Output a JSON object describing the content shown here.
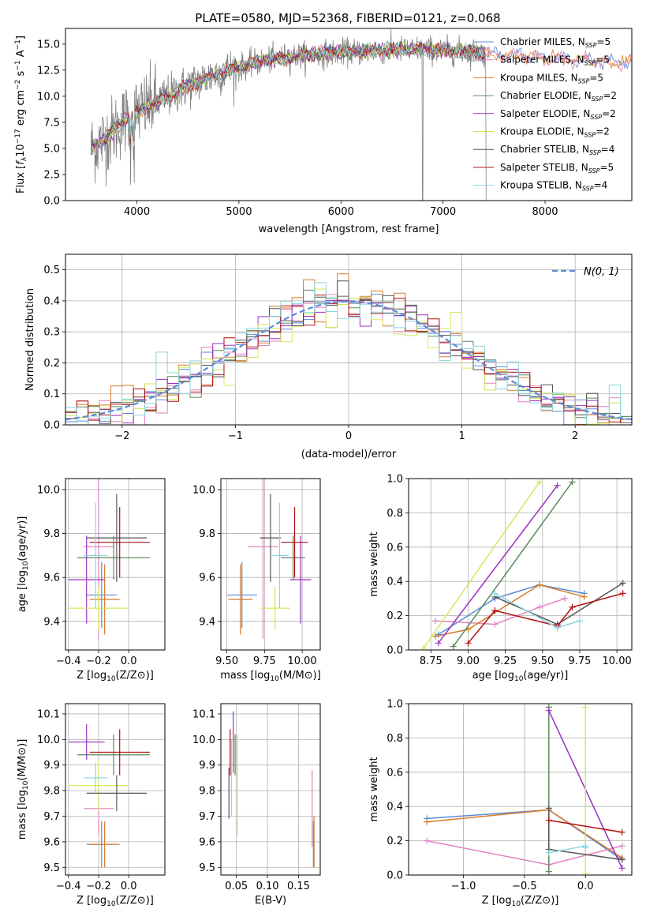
{
  "figure_title": "PLATE=0580, MJD=52368, FIBERID=0121, z=0.068",
  "colors": {
    "Chabrier MILES": "#5b8ad6",
    "Salpeter MILES": "#e282c1",
    "Kroupa MILES": "#d97b28",
    "Chabrier ELODIE": "#5b8a5b",
    "Salpeter ELODIE": "#9b30c0",
    "Kroupa ELODIE": "#d4e85a",
    "Chabrier STELIB": "#555555",
    "Salpeter STELIB": "#b01010",
    "Kroupa STELIB": "#8ad8e0",
    "data": "#808080",
    "normal": "#5b8ad6"
  },
  "chart_data": [
    {
      "id": "spectrum",
      "type": "line",
      "title": "PLATE=0580, MJD=52368, FIBERID=0121, z=0.068",
      "xlabel": "wavelength [Angstrom, rest frame]",
      "ylabel": "Flux [f_λ10^-17 erg cm^-2 s^-1 A^-1]",
      "xlim": [
        3300,
        8850
      ],
      "ylim": [
        0,
        16.5
      ],
      "xticks": [
        4000,
        5000,
        6000,
        7000,
        8000
      ],
      "yticks": [
        0.0,
        2.5,
        5.0,
        7.5,
        10.0,
        12.5,
        15.0
      ],
      "ytick_labels": [
        "0.0",
        "2.5",
        "5.0",
        "7.5",
        "10.0",
        "12.5",
        "15.0"
      ],
      "grid": false,
      "legend_position": "right",
      "legend": [
        {
          "model": "Chabrier MILES",
          "label": "Chabrier MILES, N",
          "sub": "SSP",
          "tail": "=5"
        },
        {
          "model": "Salpeter MILES",
          "label": "Salpeter MILES, N",
          "sub": "SSP",
          "tail": "=5"
        },
        {
          "model": "Kroupa MILES",
          "label": "Kroupa MILES, N",
          "sub": "SSP",
          "tail": "=5"
        },
        {
          "model": "Chabrier ELODIE",
          "label": "Chabrier ELODIE, N",
          "sub": "SSP",
          "tail": "=2"
        },
        {
          "model": "Salpeter ELODIE",
          "label": "Salpeter ELODIE, N",
          "sub": "SSP",
          "tail": "=2"
        },
        {
          "model": "Kroupa ELODIE",
          "label": "Kroupa ELODIE, N",
          "sub": "SSP",
          "tail": "=2"
        },
        {
          "model": "Chabrier STELIB",
          "label": "Chabrier STELIB, N",
          "sub": "SSP",
          "tail": "=4"
        },
        {
          "model": "Salpeter STELIB",
          "label": "Salpeter STELIB, N",
          "sub": "SSP",
          "tail": "=5"
        },
        {
          "model": "Kroupa STELIB",
          "label": "Kroupa STELIB, N",
          "sub": "SSP",
          "tail": "=4"
        }
      ],
      "continuum": {
        "wavelength": [
          3550,
          3700,
          3850,
          4000,
          4200,
          4500,
          4800,
          5000,
          5300,
          5600,
          6000,
          6400,
          6800,
          7200,
          7600,
          8000,
          8400,
          8800
        ],
        "flux": [
          5.0,
          6.0,
          7.5,
          8.5,
          9.5,
          11.0,
          12.2,
          12.8,
          13.5,
          13.9,
          14.2,
          14.4,
          14.5,
          14.3,
          14.0,
          13.7,
          13.4,
          13.2
        ]
      }
    },
    {
      "id": "residuals",
      "type": "line",
      "xlabel": "(data-model)/error",
      "ylabel": "Normed distribution",
      "xlim": [
        -2.5,
        2.5
      ],
      "ylim": [
        0,
        0.55
      ],
      "xticks": [
        -2,
        -1,
        0,
        1,
        2
      ],
      "xtick_labels": [
        "−2",
        "−1",
        "0",
        "1",
        "2"
      ],
      "yticks": [
        0.0,
        0.1,
        0.2,
        0.3,
        0.4,
        0.5
      ],
      "ytick_labels": [
        "0.0",
        "0.1",
        "0.2",
        "0.3",
        "0.4",
        "0.5"
      ],
      "grid": true,
      "legend_position": "top-right",
      "normal_label": "N(0, 1)",
      "bin_width": 0.1
    },
    {
      "id": "age_vs_Z",
      "type": "scatter",
      "xlabel": "Z [log10(Z/Z⊙)]",
      "ylabel": "age [log10(age/yr)]",
      "xlim": [
        -0.42,
        0.24
      ],
      "ylim": [
        9.27,
        10.05
      ],
      "xticks": [
        -0.4,
        -0.2,
        0.0
      ],
      "xtick_labels": [
        "−0.4",
        "−0.2",
        "0.0"
      ],
      "yticks": [
        9.4,
        9.6,
        9.8,
        10.0
      ],
      "ytick_labels": [
        "9.4",
        "9.6",
        "9.8",
        "10.0"
      ],
      "grid": true,
      "points": [
        {
          "model": "Chabrier MILES",
          "x": -0.18,
          "xerr": 0.1,
          "y": 9.52,
          "yerr": 0.15
        },
        {
          "model": "Salpeter MILES",
          "x": -0.2,
          "xerr": 0.1,
          "y": 9.74,
          "yerr": 0.42
        },
        {
          "model": "Kroupa MILES",
          "x": -0.16,
          "xerr": 0.1,
          "y": 9.5,
          "yerr": 0.16
        },
        {
          "model": "Chabrier ELODIE",
          "x": -0.1,
          "xerr": 0.24,
          "y": 9.69,
          "yerr": 0.1
        },
        {
          "model": "Salpeter ELODIE",
          "x": -0.28,
          "xerr": 0.12,
          "y": 9.59,
          "yerr": 0.2
        },
        {
          "model": "Kroupa ELODIE",
          "x": -0.2,
          "xerr": 0.2,
          "y": 9.46,
          "yerr": 0.1
        },
        {
          "model": "Chabrier STELIB",
          "x": -0.08,
          "xerr": 0.2,
          "y": 9.78,
          "yerr": 0.2
        },
        {
          "model": "Salpeter STELIB",
          "x": -0.06,
          "xerr": 0.2,
          "y": 9.76,
          "yerr": 0.16
        },
        {
          "model": "Kroupa STELIB",
          "x": -0.22,
          "xerr": 0.08,
          "y": 9.7,
          "yerr": 0.24
        }
      ]
    },
    {
      "id": "age_vs_mass",
      "type": "scatter",
      "xlabel": "mass [log10(M/M⊙)]",
      "ylabel": "",
      "xlim": [
        9.46,
        10.12
      ],
      "ylim": [
        9.27,
        10.05
      ],
      "xticks": [
        9.5,
        9.75,
        10.0
      ],
      "xtick_labels": [
        "9.50",
        "9.75",
        "10.00"
      ],
      "yticks": [
        9.4,
        9.6,
        9.8,
        10.0
      ],
      "ytick_labels": [
        "9.4",
        "9.6",
        "9.8",
        "10.0"
      ],
      "grid": true,
      "points": [
        {
          "model": "Chabrier MILES",
          "x": 9.6,
          "xerr": 0.1,
          "y": 9.52,
          "yerr": 0.15
        },
        {
          "model": "Salpeter MILES",
          "x": 9.74,
          "xerr": 0.1,
          "y": 9.74,
          "yerr": 0.42
        },
        {
          "model": "Kroupa MILES",
          "x": 9.59,
          "xerr": 0.08,
          "y": 9.5,
          "yerr": 0.16
        },
        {
          "model": "Chabrier ELODIE",
          "x": 9.94,
          "xerr": 0.08,
          "y": 9.69,
          "yerr": 0.1
        },
        {
          "model": "Salpeter ELODIE",
          "x": 9.99,
          "xerr": 0.07,
          "y": 9.59,
          "yerr": 0.2
        },
        {
          "model": "Kroupa ELODIE",
          "x": 9.82,
          "xerr": 0.1,
          "y": 9.46,
          "yerr": 0.1
        },
        {
          "model": "Chabrier STELIB",
          "x": 9.79,
          "xerr": 0.07,
          "y": 9.78,
          "yerr": 0.2
        },
        {
          "model": "Salpeter STELIB",
          "x": 9.95,
          "xerr": 0.09,
          "y": 9.76,
          "yerr": 0.16
        },
        {
          "model": "Kroupa STELIB",
          "x": 9.85,
          "xerr": 0.06,
          "y": 9.7,
          "yerr": 0.24
        }
      ]
    },
    {
      "id": "weight_vs_age",
      "type": "line",
      "xlabel": "age [log10(age/yr)]",
      "ylabel": "mass weight",
      "xlim": [
        8.6,
        10.1
      ],
      "ylim": [
        0,
        1
      ],
      "xticks": [
        8.75,
        9.0,
        9.25,
        9.5,
        9.75,
        10.0
      ],
      "xtick_labels": [
        "8.75",
        "9.00",
        "9.25",
        "9.50",
        "9.75",
        "10.00"
      ],
      "yticks": [
        0.0,
        0.2,
        0.4,
        0.6,
        0.8,
        1.0
      ],
      "ytick_labels": [
        "0.0",
        "0.2",
        "0.4",
        "0.6",
        "0.8",
        "1.0"
      ],
      "grid": true,
      "series": [
        {
          "model": "Chabrier MILES",
          "x": [
            8.8,
            9.18,
            9.48,
            9.78
          ],
          "y": [
            0.09,
            0.3,
            0.38,
            0.33
          ]
        },
        {
          "model": "Salpeter MILES",
          "x": [
            8.78,
            9.18,
            9.48,
            9.65
          ],
          "y": [
            0.17,
            0.15,
            0.25,
            0.3
          ]
        },
        {
          "model": "Kroupa MILES",
          "x": [
            8.78,
            9.0,
            9.48,
            9.78
          ],
          "y": [
            0.08,
            0.12,
            0.38,
            0.31
          ]
        },
        {
          "model": "Chabrier ELODIE",
          "x": [
            8.9,
            9.7
          ],
          "y": [
            0.02,
            0.98
          ]
        },
        {
          "model": "Salpeter ELODIE",
          "x": [
            8.8,
            9.6
          ],
          "y": [
            0.04,
            0.96
          ]
        },
        {
          "model": "Kroupa ELODIE",
          "x": [
            8.7,
            9.48
          ],
          "y": [
            0.01,
            0.98
          ]
        },
        {
          "model": "Chabrier STELIB",
          "x": [
            9.18,
            9.6,
            10.04
          ],
          "y": [
            0.31,
            0.15,
            0.39
          ]
        },
        {
          "model": "Salpeter STELIB",
          "x": [
            9.0,
            9.18,
            9.6,
            9.7,
            10.04
          ],
          "y": [
            0.04,
            0.23,
            0.14,
            0.25,
            0.33
          ]
        },
        {
          "model": "Kroupa STELIB",
          "x": [
            9.18,
            9.6,
            9.75
          ],
          "y": [
            0.33,
            0.13,
            0.17
          ]
        }
      ]
    },
    {
      "id": "mass_vs_Z",
      "type": "scatter",
      "xlabel": "Z [log10(Z/Z⊙)]",
      "ylabel": "mass [log10(M/M⊙)]",
      "xlim": [
        -0.42,
        0.24
      ],
      "ylim": [
        9.47,
        10.14
      ],
      "xticks": [
        -0.4,
        -0.2,
        0.0
      ],
      "xtick_labels": [
        "−0.4",
        "−0.2",
        "0.0"
      ],
      "yticks": [
        9.5,
        9.6,
        9.7,
        9.8,
        9.9,
        10.0,
        10.1
      ],
      "ytick_labels": [
        "9.5",
        "9.6",
        "9.7",
        "9.8",
        "9.9",
        "10.0",
        "10.1"
      ],
      "grid": true,
      "points": [
        {
          "model": "Chabrier MILES",
          "x": -0.18,
          "xerr": 0.1,
          "y": 9.59,
          "yerr": 0.09
        },
        {
          "model": "Salpeter MILES",
          "x": -0.2,
          "xerr": 0.1,
          "y": 9.73,
          "yerr": 0.1
        },
        {
          "model": "Kroupa MILES",
          "x": -0.16,
          "xerr": 0.1,
          "y": 9.59,
          "yerr": 0.09
        },
        {
          "model": "Chabrier ELODIE",
          "x": -0.1,
          "xerr": 0.24,
          "y": 9.94,
          "yerr": 0.08
        },
        {
          "model": "Salpeter ELODIE",
          "x": -0.28,
          "xerr": 0.12,
          "y": 9.99,
          "yerr": 0.07
        },
        {
          "model": "Kroupa ELODIE",
          "x": -0.2,
          "xerr": 0.2,
          "y": 9.82,
          "yerr": 0.1
        },
        {
          "model": "Chabrier STELIB",
          "x": -0.08,
          "xerr": 0.2,
          "y": 9.79,
          "yerr": 0.07
        },
        {
          "model": "Salpeter STELIB",
          "x": -0.06,
          "xerr": 0.2,
          "y": 9.95,
          "yerr": 0.09
        },
        {
          "model": "Kroupa STELIB",
          "x": -0.22,
          "xerr": 0.08,
          "y": 9.85,
          "yerr": 0.06
        }
      ]
    },
    {
      "id": "mass_vs_EBV",
      "type": "scatter",
      "xlabel": "E(B-V)",
      "ylabel": "",
      "xlim": [
        0.025,
        0.185
      ],
      "ylim": [
        9.47,
        10.14
      ],
      "xticks": [
        0.05,
        0.1,
        0.15
      ],
      "xtick_labels": [
        "0.05",
        "0.10",
        "0.15"
      ],
      "yticks": [
        9.5,
        9.6,
        9.7,
        9.8,
        9.9,
        10.0,
        10.1
      ],
      "ytick_labels": [
        "9.5",
        "9.6",
        "9.7",
        "9.8",
        "9.9",
        "10.0",
        "10.1"
      ],
      "grid": true,
      "points": [
        {
          "model": "Chabrier MILES",
          "x": 0.174,
          "xerr": 0,
          "y": 9.59,
          "yerr": 0.09
        },
        {
          "model": "Salpeter MILES",
          "x": 0.172,
          "xerr": 0,
          "y": 9.73,
          "yerr": 0.15
        },
        {
          "model": "Kroupa MILES",
          "x": 0.175,
          "xerr": 0,
          "y": 9.6,
          "yerr": 0.1
        },
        {
          "model": "Chabrier ELODIE",
          "x": 0.048,
          "xerr": 0,
          "y": 9.94,
          "yerr": 0.08
        },
        {
          "model": "Salpeter ELODIE",
          "x": 0.045,
          "xerr": 0,
          "y": 9.99,
          "yerr": 0.12
        },
        {
          "model": "Kroupa ELODIE",
          "x": 0.052,
          "xerr": 0,
          "y": 9.82,
          "yerr": 0.2
        },
        {
          "model": "Chabrier STELIB",
          "x": 0.038,
          "xerr": 0,
          "y": 9.79,
          "yerr": 0.1
        },
        {
          "model": "Salpeter STELIB",
          "x": 0.04,
          "xerr": 0,
          "y": 9.95,
          "yerr": 0.09
        },
        {
          "model": "Kroupa STELIB",
          "x": 0.042,
          "xerr": 0,
          "y": 9.85,
          "yerr": 0.15
        }
      ]
    },
    {
      "id": "weight_vs_Z",
      "type": "line",
      "xlabel": "Z [log10(Z/Z⊙)]",
      "ylabel": "mass weight",
      "xlim": [
        -1.45,
        0.38
      ],
      "ylim": [
        0,
        1
      ],
      "xticks": [
        -1.0,
        -0.5,
        0.0
      ],
      "xtick_labels": [
        "−1.0",
        "−0.5",
        "0.0"
      ],
      "yticks": [
        0.0,
        0.2,
        0.4,
        0.6,
        0.8,
        1.0
      ],
      "ytick_labels": [
        "0.0",
        "0.2",
        "0.4",
        "0.6",
        "0.8",
        "1.0"
      ],
      "grid": true,
      "series": [
        {
          "model": "Chabrier MILES",
          "x": [
            -1.3,
            -0.3,
            0.3
          ],
          "y": [
            0.33,
            0.38,
            0.09
          ]
        },
        {
          "model": "Salpeter MILES",
          "x": [
            -1.3,
            -0.3,
            0.3
          ],
          "y": [
            0.2,
            0.06,
            0.17
          ]
        },
        {
          "model": "Kroupa MILES",
          "x": [
            -1.3,
            -0.3,
            0.3
          ],
          "y": [
            0.31,
            0.38,
            0.1
          ]
        },
        {
          "model": "Chabrier ELODIE",
          "x": [
            -0.3,
            -0.3
          ],
          "y": [
            0.02,
            0.98
          ]
        },
        {
          "model": "Salpeter ELODIE",
          "x": [
            -0.3,
            0.3
          ],
          "y": [
            0.96,
            0.04
          ]
        },
        {
          "model": "Kroupa ELODIE",
          "x": [
            0.0,
            0.0
          ],
          "y": [
            0.01,
            0.98
          ]
        },
        {
          "model": "Chabrier STELIB",
          "x": [
            -0.3,
            -0.3,
            0.3
          ],
          "y": [
            0.39,
            0.15,
            0.09
          ]
        },
        {
          "model": "Salpeter STELIB",
          "x": [
            -0.3,
            0.3
          ],
          "y": [
            0.32,
            0.25
          ]
        },
        {
          "model": "Kroupa STELIB",
          "x": [
            -0.3,
            0.0,
            0.0
          ],
          "y": [
            0.13,
            0.17,
            0.16
          ]
        }
      ]
    }
  ]
}
